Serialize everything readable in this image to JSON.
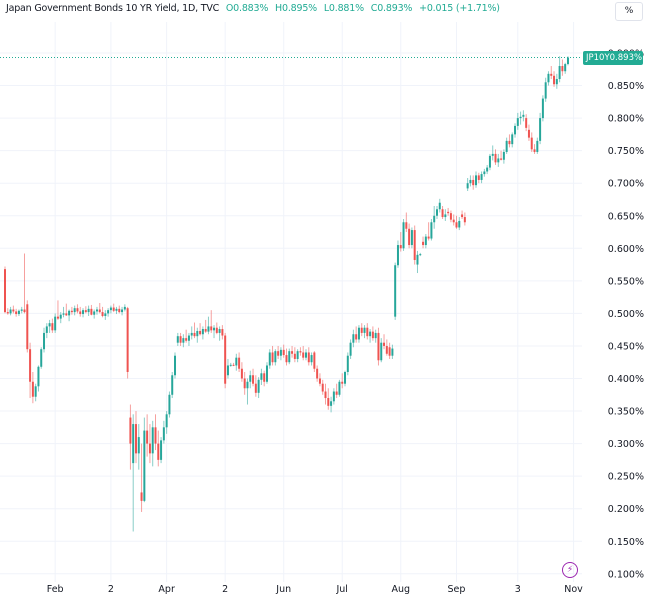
{
  "header": {
    "title": "Japan Government Bonds 10 YR Yield, 1D, TVC",
    "open": "O0.883%",
    "high": "H0.895%",
    "low": "L0.881%",
    "close": "C0.893%",
    "change": "+0.015 (+1.71%)"
  },
  "scale_button": "%",
  "price_label": {
    "symbol": "JP10Y",
    "value": "0.893%"
  },
  "colors": {
    "up": "#26a69a",
    "down": "#ef5350",
    "accent": "#22ab94",
    "event": "#9c27b0"
  },
  "event_icon": "lightning-icon",
  "chart_data": {
    "type": "candlestick",
    "title": "Japan Government Bonds 10 YR Yield, 1D, TVC",
    "ylim": [
      0.1,
      0.9
    ],
    "y_ticks": [
      "0.900%",
      "0.850%",
      "0.800%",
      "0.750%",
      "0.700%",
      "0.650%",
      "0.600%",
      "0.550%",
      "0.500%",
      "0.450%",
      "0.400%",
      "0.350%",
      "0.300%",
      "0.250%",
      "0.200%",
      "0.150%",
      "0.100%"
    ],
    "y_tick_values": [
      0.9,
      0.85,
      0.8,
      0.75,
      0.7,
      0.65,
      0.6,
      0.55,
      0.5,
      0.45,
      0.4,
      0.35,
      0.3,
      0.25,
      0.2,
      0.15,
      0.1
    ],
    "x_ticks": [
      {
        "label": "Feb",
        "index": 18
      },
      {
        "label": "2",
        "index": 38
      },
      {
        "label": "Apr",
        "index": 58
      },
      {
        "label": "2",
        "index": 79
      },
      {
        "label": "Jun",
        "index": 100
      },
      {
        "label": "Jul",
        "index": 121
      },
      {
        "label": "Aug",
        "index": 142
      },
      {
        "label": "Sep",
        "index": 162
      },
      {
        "label": "3",
        "index": 184
      },
      {
        "label": "Nov",
        "index": 204
      }
    ],
    "grid": true,
    "last_price": 0.893,
    "ohlc": [
      [
        0.568,
        0.572,
        0.5,
        0.502
      ],
      [
        0.502,
        0.508,
        0.498,
        0.5
      ],
      [
        0.5,
        0.51,
        0.497,
        0.506
      ],
      [
        0.506,
        0.512,
        0.5,
        0.503
      ],
      [
        0.503,
        0.507,
        0.495,
        0.499
      ],
      [
        0.499,
        0.506,
        0.496,
        0.504
      ],
      [
        0.504,
        0.51,
        0.5,
        0.506
      ],
      [
        0.506,
        0.592,
        0.5,
        0.502
      ],
      [
        0.514,
        0.52,
        0.44,
        0.445
      ],
      [
        0.445,
        0.455,
        0.37,
        0.395
      ],
      [
        0.395,
        0.41,
        0.362,
        0.372
      ],
      [
        0.372,
        0.392,
        0.365,
        0.388
      ],
      [
        0.388,
        0.42,
        0.38,
        0.418
      ],
      [
        0.418,
        0.448,
        0.415,
        0.445
      ],
      [
        0.445,
        0.478,
        0.44,
        0.47
      ],
      [
        0.47,
        0.485,
        0.462,
        0.48
      ],
      [
        0.48,
        0.49,
        0.47,
        0.485
      ],
      [
        0.485,
        0.492,
        0.47,
        0.474
      ],
      [
        0.474,
        0.5,
        0.47,
        0.495
      ],
      [
        0.495,
        0.52,
        0.49,
        0.492
      ],
      [
        0.492,
        0.502,
        0.485,
        0.498
      ],
      [
        0.498,
        0.51,
        0.494,
        0.5
      ],
      [
        0.5,
        0.515,
        0.496,
        0.497
      ],
      [
        0.497,
        0.506,
        0.488,
        0.504
      ],
      [
        0.504,
        0.51,
        0.498,
        0.502
      ],
      [
        0.502,
        0.512,
        0.497,
        0.508
      ],
      [
        0.508,
        0.514,
        0.5,
        0.503
      ],
      [
        0.503,
        0.51,
        0.495,
        0.499
      ],
      [
        0.499,
        0.508,
        0.494,
        0.505
      ],
      [
        0.505,
        0.511,
        0.5,
        0.502
      ],
      [
        0.502,
        0.512,
        0.496,
        0.507
      ],
      [
        0.507,
        0.513,
        0.497,
        0.498
      ],
      [
        0.498,
        0.506,
        0.492,
        0.503
      ],
      [
        0.503,
        0.51,
        0.498,
        0.506
      ],
      [
        0.506,
        0.516,
        0.5,
        0.502
      ],
      [
        0.502,
        0.51,
        0.494,
        0.496
      ],
      [
        0.496,
        0.505,
        0.49,
        0.5
      ],
      [
        0.5,
        0.508,
        0.495,
        0.505
      ],
      [
        0.505,
        0.512,
        0.5,
        0.509
      ],
      [
        0.509,
        0.515,
        0.502,
        0.504
      ],
      [
        0.504,
        0.51,
        0.499,
        0.507
      ],
      [
        0.507,
        0.512,
        0.5,
        0.502
      ],
      [
        0.502,
        0.51,
        0.497,
        0.506
      ],
      [
        0.506,
        0.514,
        0.503,
        0.51
      ],
      [
        0.508,
        0.51,
        0.4,
        0.41
      ],
      [
        0.34,
        0.36,
        0.26,
        0.3
      ],
      [
        0.27,
        0.345,
        0.165,
        0.33
      ],
      [
        0.33,
        0.35,
        0.27,
        0.285
      ],
      [
        0.285,
        0.33,
        0.26,
        0.31
      ],
      [
        0.225,
        0.3,
        0.195,
        0.212
      ],
      [
        0.212,
        0.34,
        0.21,
        0.32
      ],
      [
        0.32,
        0.345,
        0.28,
        0.3
      ],
      [
        0.3,
        0.33,
        0.27,
        0.285
      ],
      [
        0.285,
        0.335,
        0.265,
        0.325
      ],
      [
        0.325,
        0.345,
        0.29,
        0.3
      ],
      [
        0.3,
        0.32,
        0.265,
        0.275
      ],
      [
        0.275,
        0.31,
        0.27,
        0.305
      ],
      [
        0.305,
        0.335,
        0.3,
        0.325
      ],
      [
        0.325,
        0.35,
        0.315,
        0.345
      ],
      [
        0.345,
        0.38,
        0.34,
        0.375
      ],
      [
        0.375,
        0.41,
        0.37,
        0.405
      ],
      [
        0.405,
        0.44,
        0.4,
        0.435
      ],
      [
        0.455,
        0.47,
        0.45,
        0.465
      ],
      [
        0.465,
        0.47,
        0.45,
        0.455
      ],
      [
        0.455,
        0.468,
        0.448,
        0.462
      ],
      [
        0.462,
        0.475,
        0.455,
        0.458
      ],
      [
        0.458,
        0.47,
        0.45,
        0.466
      ],
      [
        0.466,
        0.48,
        0.46,
        0.47
      ],
      [
        0.47,
        0.486,
        0.462,
        0.465
      ],
      [
        0.465,
        0.478,
        0.455,
        0.473
      ],
      [
        0.473,
        0.485,
        0.466,
        0.468
      ],
      [
        0.468,
        0.48,
        0.46,
        0.476
      ],
      [
        0.476,
        0.49,
        0.47,
        0.472
      ],
      [
        0.472,
        0.495,
        0.468,
        0.48
      ],
      [
        0.48,
        0.505,
        0.47,
        0.474
      ],
      [
        0.474,
        0.482,
        0.462,
        0.478
      ],
      [
        0.478,
        0.486,
        0.468,
        0.47
      ],
      [
        0.47,
        0.48,
        0.458,
        0.476
      ],
      [
        0.476,
        0.482,
        0.46,
        0.466
      ],
      [
        0.466,
        0.47,
        0.385,
        0.392
      ],
      [
        0.405,
        0.43,
        0.4,
        0.42
      ],
      [
        0.42,
        0.424,
        0.418,
        0.421
      ],
      [
        0.421,
        0.424,
        0.419,
        0.42
      ],
      [
        0.42,
        0.438,
        0.412,
        0.432
      ],
      [
        0.432,
        0.44,
        0.41,
        0.415
      ],
      [
        0.415,
        0.425,
        0.395,
        0.4
      ],
      [
        0.4,
        0.41,
        0.375,
        0.385
      ],
      [
        0.385,
        0.4,
        0.36,
        0.395
      ],
      [
        0.395,
        0.412,
        0.385,
        0.405
      ],
      [
        0.405,
        0.415,
        0.388,
        0.392
      ],
      [
        0.392,
        0.405,
        0.372,
        0.378
      ],
      [
        0.378,
        0.402,
        0.37,
        0.398
      ],
      [
        0.398,
        0.415,
        0.39,
        0.408
      ],
      [
        0.408,
        0.412,
        0.388,
        0.395
      ],
      [
        0.395,
        0.425,
        0.392,
        0.42
      ],
      [
        0.42,
        0.445,
        0.415,
        0.44
      ],
      [
        0.44,
        0.45,
        0.42,
        0.425
      ],
      [
        0.425,
        0.445,
        0.42,
        0.442
      ],
      [
        0.442,
        0.45,
        0.43,
        0.435
      ],
      [
        0.435,
        0.448,
        0.428,
        0.444
      ],
      [
        0.444,
        0.452,
        0.432,
        0.436
      ],
      [
        0.436,
        0.446,
        0.42,
        0.425
      ],
      [
        0.425,
        0.446,
        0.422,
        0.442
      ],
      [
        0.442,
        0.45,
        0.432,
        0.438
      ],
      [
        0.438,
        0.448,
        0.425,
        0.43
      ],
      [
        0.43,
        0.445,
        0.425,
        0.442
      ],
      [
        0.442,
        0.448,
        0.435,
        0.44
      ],
      [
        0.44,
        0.45,
        0.428,
        0.432
      ],
      [
        0.432,
        0.445,
        0.428,
        0.44
      ],
      [
        0.44,
        0.448,
        0.42,
        0.425
      ],
      [
        0.425,
        0.44,
        0.42,
        0.436
      ],
      [
        0.44,
        0.442,
        0.41,
        0.415
      ],
      [
        0.415,
        0.42,
        0.395,
        0.4
      ],
      [
        0.4,
        0.408,
        0.388,
        0.392
      ],
      [
        0.392,
        0.398,
        0.375,
        0.38
      ],
      [
        0.38,
        0.392,
        0.36,
        0.37
      ],
      [
        0.37,
        0.385,
        0.352,
        0.358
      ],
      [
        0.358,
        0.372,
        0.348,
        0.365
      ],
      [
        0.365,
        0.385,
        0.36,
        0.38
      ],
      [
        0.38,
        0.392,
        0.37,
        0.375
      ],
      [
        0.375,
        0.398,
        0.372,
        0.395
      ],
      [
        0.395,
        0.408,
        0.385,
        0.392
      ],
      [
        0.392,
        0.412,
        0.388,
        0.41
      ],
      [
        0.41,
        0.44,
        0.405,
        0.435
      ],
      [
        0.435,
        0.46,
        0.43,
        0.455
      ],
      [
        0.455,
        0.475,
        0.448,
        0.468
      ],
      [
        0.468,
        0.48,
        0.455,
        0.46
      ],
      [
        0.46,
        0.482,
        0.455,
        0.478
      ],
      [
        0.478,
        0.485,
        0.465,
        0.47
      ],
      [
        0.47,
        0.482,
        0.462,
        0.478
      ],
      [
        0.478,
        0.485,
        0.46,
        0.465
      ],
      [
        0.465,
        0.476,
        0.455,
        0.472
      ],
      [
        0.472,
        0.48,
        0.458,
        0.462
      ],
      [
        0.462,
        0.475,
        0.455,
        0.47
      ],
      [
        0.47,
        0.478,
        0.42,
        0.428
      ],
      [
        0.428,
        0.462,
        0.425,
        0.455
      ],
      [
        0.455,
        0.468,
        0.445,
        0.45
      ],
      [
        0.45,
        0.46,
        0.435,
        0.438
      ],
      [
        0.448,
        0.455,
        0.43,
        0.435
      ],
      [
        0.435,
        0.452,
        0.43,
        0.446
      ],
      [
        0.495,
        0.578,
        0.49,
        0.574
      ],
      [
        0.574,
        0.612,
        0.57,
        0.605
      ],
      [
        0.605,
        0.625,
        0.595,
        0.6
      ],
      [
        0.6,
        0.645,
        0.596,
        0.64
      ],
      [
        0.64,
        0.655,
        0.625,
        0.63
      ],
      [
        0.63,
        0.638,
        0.6,
        0.605
      ],
      [
        0.605,
        0.632,
        0.6,
        0.628
      ],
      [
        0.628,
        0.635,
        0.575,
        0.582
      ],
      [
        0.575,
        0.596,
        0.562,
        0.59
      ],
      [
        0.59,
        0.593,
        0.588,
        0.591
      ],
      [
        0.61,
        0.618,
        0.6,
        0.605
      ],
      [
        0.605,
        0.622,
        0.6,
        0.618
      ],
      [
        0.618,
        0.64,
        0.612,
        0.615
      ],
      [
        0.615,
        0.645,
        0.612,
        0.64
      ],
      [
        0.64,
        0.665,
        0.63,
        0.65
      ],
      [
        0.65,
        0.665,
        0.645,
        0.66
      ],
      [
        0.66,
        0.676,
        0.655,
        0.67
      ],
      [
        0.66,
        0.665,
        0.645,
        0.648
      ],
      [
        0.648,
        0.66,
        0.642,
        0.652
      ],
      [
        0.656,
        0.662,
        0.65,
        0.654
      ],
      [
        0.654,
        0.658,
        0.64,
        0.644
      ],
      [
        0.644,
        0.652,
        0.635,
        0.64
      ],
      [
        0.64,
        0.65,
        0.63,
        0.632
      ],
      [
        0.632,
        0.648,
        0.628,
        0.642
      ],
      [
        0.652,
        0.658,
        0.645,
        0.648
      ],
      [
        0.648,
        0.655,
        0.635,
        0.64
      ],
      [
        0.692,
        0.708,
        0.688,
        0.7
      ],
      [
        0.7,
        0.712,
        0.695,
        0.705
      ],
      [
        0.705,
        0.712,
        0.69,
        0.697
      ],
      [
        0.697,
        0.718,
        0.693,
        0.712
      ],
      [
        0.712,
        0.716,
        0.7,
        0.705
      ],
      [
        0.705,
        0.718,
        0.7,
        0.714
      ],
      [
        0.714,
        0.722,
        0.71,
        0.718
      ],
      [
        0.718,
        0.728,
        0.714,
        0.724
      ],
      [
        0.724,
        0.745,
        0.72,
        0.742
      ],
      [
        0.742,
        0.758,
        0.735,
        0.745
      ],
      [
        0.745,
        0.752,
        0.728,
        0.732
      ],
      [
        0.732,
        0.745,
        0.725,
        0.738
      ],
      [
        0.738,
        0.75,
        0.735,
        0.736
      ],
      [
        0.736,
        0.752,
        0.73,
        0.748
      ],
      [
        0.748,
        0.77,
        0.745,
        0.765
      ],
      [
        0.765,
        0.775,
        0.755,
        0.76
      ],
      [
        0.76,
        0.778,
        0.755,
        0.775
      ],
      [
        0.775,
        0.792,
        0.77,
        0.788
      ],
      [
        0.788,
        0.808,
        0.782,
        0.8
      ],
      [
        0.8,
        0.81,
        0.79,
        0.802
      ],
      [
        0.802,
        0.812,
        0.795,
        0.805
      ],
      [
        0.8,
        0.806,
        0.78,
        0.785
      ],
      [
        0.782,
        0.79,
        0.765,
        0.77
      ],
      [
        0.77,
        0.778,
        0.748,
        0.752
      ],
      [
        0.752,
        0.76,
        0.745,
        0.748
      ],
      [
        0.748,
        0.77,
        0.745,
        0.765
      ],
      [
        0.765,
        0.808,
        0.76,
        0.8
      ],
      [
        0.8,
        0.835,
        0.795,
        0.83
      ],
      [
        0.83,
        0.862,
        0.825,
        0.855
      ],
      [
        0.855,
        0.872,
        0.85,
        0.868
      ],
      [
        0.868,
        0.88,
        0.86,
        0.865
      ],
      [
        0.865,
        0.872,
        0.848,
        0.852
      ],
      [
        0.852,
        0.868,
        0.845,
        0.86
      ],
      [
        0.86,
        0.895,
        0.855,
        0.88
      ],
      [
        0.88,
        0.89,
        0.865,
        0.872
      ],
      [
        0.872,
        0.885,
        0.868,
        0.883
      ],
      [
        0.883,
        0.895,
        0.881,
        0.893
      ]
    ]
  }
}
